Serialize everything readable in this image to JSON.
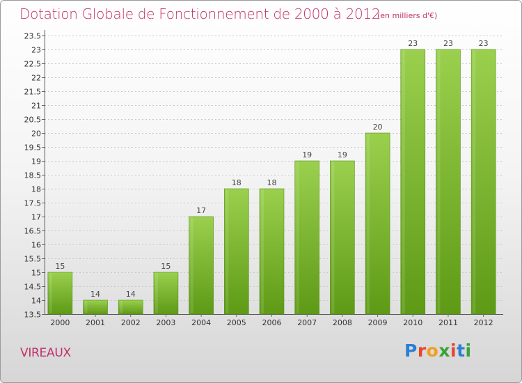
{
  "header": {
    "title": "Dotation Globale de Fonctionnement de 2000 à 2012",
    "subtitle": "(en milliers d'€)"
  },
  "footer": {
    "commune": "VIREAUX",
    "logo_text": "Proxiti"
  },
  "colors": {
    "title": "#c0306a",
    "bar_top": "#9ad04e",
    "bar_bottom": "#5e9a16"
  },
  "chart_data": {
    "type": "bar",
    "title": "Dotation Globale de Fonctionnement de 2000 à 2012",
    "subtitle": "(en milliers d'€)",
    "categories": [
      "2000",
      "2001",
      "2002",
      "2003",
      "2004",
      "2005",
      "2006",
      "2007",
      "2008",
      "2009",
      "2010",
      "2011",
      "2012"
    ],
    "values": [
      15,
      14,
      14,
      15,
      17,
      18,
      18,
      19,
      19,
      20,
      23,
      23,
      23
    ],
    "data_labels": [
      "15",
      "14",
      "14",
      "15",
      "17",
      "18",
      "18",
      "19",
      "19",
      "20",
      "23",
      "23",
      "23"
    ],
    "yticks": [
      13.5,
      14,
      14.5,
      15,
      15.5,
      16,
      16.5,
      17,
      17.5,
      18,
      18.5,
      19,
      19.5,
      20,
      20.5,
      21,
      21.5,
      22,
      22.5,
      23,
      23.5
    ],
    "ylim": [
      13.5,
      23.5
    ],
    "grid": true,
    "legend": "none"
  }
}
